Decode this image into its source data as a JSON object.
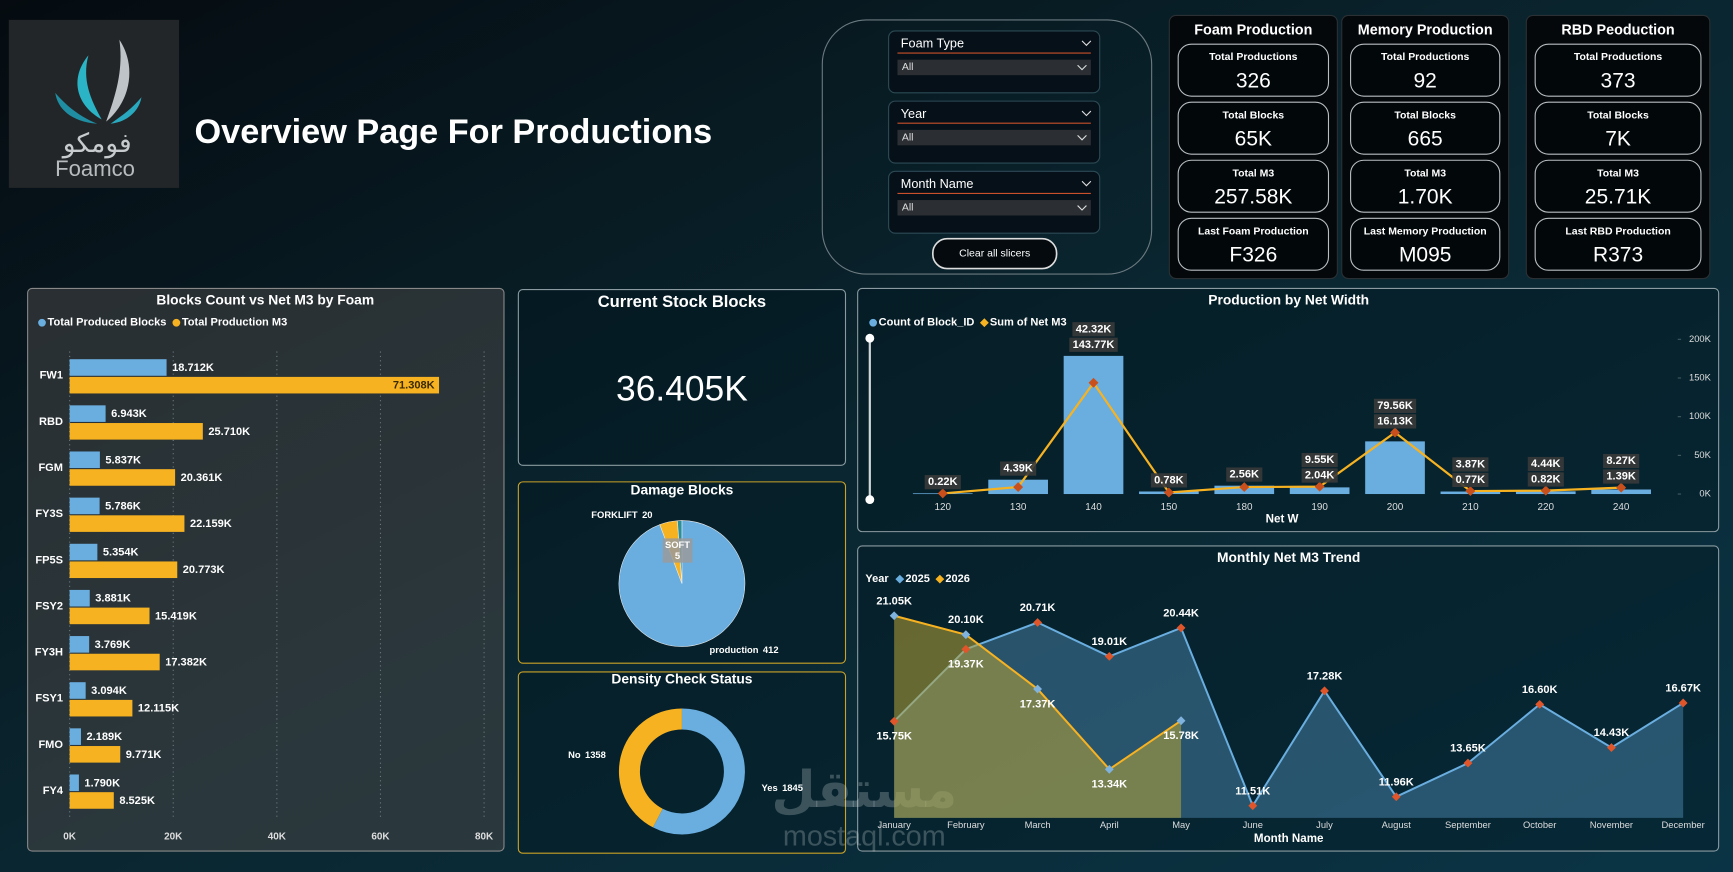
{
  "header": {
    "title": "Overview Page For Productions",
    "logo_arabic": "فومكو",
    "logo_name": "Foamco"
  },
  "slicers": [
    {
      "label": "Foam Type",
      "value": "All"
    },
    {
      "label": "Year",
      "value": "All"
    },
    {
      "label": "Month Name",
      "value": "All"
    }
  ],
  "clear_button": "Clear all slicers",
  "kpi_panels": [
    {
      "title": "Foam Production",
      "cards": [
        {
          "label": "Total Productions",
          "value": "326"
        },
        {
          "label": "Total Blocks",
          "value": "65K"
        },
        {
          "label": "Total M3",
          "value": "257.58K"
        },
        {
          "label": "Last Foam Production",
          "value": "F326"
        }
      ]
    },
    {
      "title": "Memory Production",
      "cards": [
        {
          "label": "Total Productions",
          "value": "92"
        },
        {
          "label": "Total Blocks",
          "value": "665"
        },
        {
          "label": "Total M3",
          "value": "1.70K"
        },
        {
          "label": "Last Memory Production",
          "value": "M095"
        }
      ]
    },
    {
      "title": "RBD Peoduction",
      "cards": [
        {
          "label": "Total Productions",
          "value": "373"
        },
        {
          "label": "Total Blocks",
          "value": "7K"
        },
        {
          "label": "Total M3",
          "value": "25.71K"
        },
        {
          "label": "Last RBD Production",
          "value": "R373"
        }
      ]
    }
  ],
  "stock_card": {
    "title": "Current Stock Blocks",
    "value": "36.405K"
  },
  "chart_data": [
    {
      "type": "hbar",
      "title": "Blocks Count vs Net M3 by Foam",
      "categories": [
        "FW1",
        "RBD",
        "FGM",
        "FY3S",
        "FP5S",
        "FSY2",
        "FY3H",
        "FSY1",
        "FMO",
        "FY4"
      ],
      "series": [
        {
          "name": "Total Produced Blocks",
          "color": "#6aaee0",
          "values": [
            18712,
            6943,
            5837,
            5786,
            5354,
            3881,
            3769,
            3094,
            2189,
            1790
          ],
          "value_labels": [
            "18.712K",
            "6.943K",
            "5.837K",
            "5.786K",
            "5.354K",
            "3.881K",
            "3.769K",
            "3.094K",
            "2.189K",
            "1.790K"
          ]
        },
        {
          "name": "Total Production M3",
          "color": "#f7b221",
          "values": [
            71308,
            25710,
            20361,
            22159,
            20773,
            15419,
            17382,
            12115,
            9771,
            8525
          ],
          "value_labels": [
            "71.308K",
            "25.710K",
            "20.361K",
            "22.159K",
            "20.773K",
            "15.419K",
            "17.382K",
            "12.115K",
            "9.771K",
            "8.525K"
          ]
        }
      ],
      "xlim": [
        0,
        80000
      ],
      "xticks": [
        {
          "value": 0,
          "label": "0K"
        },
        {
          "value": 20000,
          "label": "20K"
        },
        {
          "value": 40000,
          "label": "40K"
        },
        {
          "value": 60000,
          "label": "60K"
        },
        {
          "value": 80000,
          "label": "80K"
        }
      ],
      "grid": true,
      "legend": "top-left"
    },
    {
      "type": "pie",
      "title": "Damage Blocks",
      "categories": [
        "production",
        "FORKLIFT",
        "SOFT"
      ],
      "values": [
        412,
        20,
        5
      ],
      "colors": [
        "#6aaee0",
        "#f7b221",
        "#2a8f9a"
      ]
    },
    {
      "type": "donut",
      "title": "Density Check Status",
      "categories": [
        "Yes",
        "No"
      ],
      "values": [
        1845,
        1358
      ],
      "colors": [
        "#6aaee0",
        "#f7b221"
      ]
    },
    {
      "type": "combo",
      "title": "Production by Net Width",
      "x_label": "Net W",
      "categories": [
        "120",
        "130",
        "140",
        "150",
        "180",
        "190",
        "200",
        "210",
        "220",
        "240"
      ],
      "series": [
        {
          "name": "Count of Block_ID",
          "kind": "bar",
          "axis": "y2",
          "color": "#6aaee0",
          "values": [
            220,
            4390,
            42320,
            780,
            2560,
            2040,
            16130,
            770,
            820,
            1390
          ],
          "value_labels": [
            "0.22K",
            "4.39K",
            "42.32K",
            "0.78K",
            "2.56K",
            "2.04K",
            "16.13K",
            "0.77K",
            "0.82K",
            "1.39K"
          ]
        },
        {
          "name": "Sum of Net M3",
          "kind": "line",
          "color": "#f7b221",
          "marker_color": "#c9501c",
          "values": [
            800,
            9000,
            143770,
            2000,
            9000,
            9550,
            79560,
            3870,
            4440,
            8270
          ],
          "value_labels": [
            null,
            null,
            "143.77K",
            null,
            null,
            "9.55K",
            "79.56K",
            "3.87K",
            "4.44K",
            "8.27K"
          ]
        }
      ],
      "ylim": [
        0,
        200000
      ],
      "yticks": [
        {
          "value": 0,
          "label": "0K"
        },
        {
          "value": 50000,
          "label": "50K"
        },
        {
          "value": 100000,
          "label": "100K"
        },
        {
          "value": 150000,
          "label": "150K"
        },
        {
          "value": 200000,
          "label": "200K"
        }
      ],
      "y2lim": [
        0,
        47400
      ],
      "legend": "top-left"
    },
    {
      "type": "area",
      "title": "Monthly Net M3 Trend",
      "x_label": "Month Name",
      "legend_title": "Year",
      "categories": [
        "January",
        "February",
        "March",
        "April",
        "May",
        "June",
        "July",
        "August",
        "September",
        "October",
        "November",
        "December"
      ],
      "series": [
        {
          "name": "2025",
          "color": "#6aaee0",
          "marker_color": "#e0552a",
          "values": [
            15750,
            19370,
            20710,
            19010,
            20440,
            11510,
            17280,
            11960,
            13650,
            16600,
            14430,
            16670
          ],
          "value_labels": [
            "15.75K",
            "19.37K",
            "20.71K",
            "19.01K",
            "20.44K",
            "11.51K",
            "17.28K",
            "11.96K",
            "13.65K",
            "16.60K",
            "14.43K",
            "16.67K"
          ]
        },
        {
          "name": "2026",
          "color": "#f7b221",
          "marker_color": "#7fb2dc",
          "values": [
            21050,
            20100,
            17370,
            13340,
            15780,
            null,
            null,
            null,
            null,
            null,
            null,
            null
          ],
          "value_labels": [
            "21.05K",
            "20.10K",
            "17.37K",
            "13.34K",
            "15.78K",
            null,
            null,
            null,
            null,
            null,
            null,
            null
          ]
        }
      ],
      "ylim": [
        10900,
        22000
      ],
      "legend": "top-left"
    }
  ],
  "watermark": {
    "arabic": "مستقل",
    "latin": "mostaql.com"
  }
}
